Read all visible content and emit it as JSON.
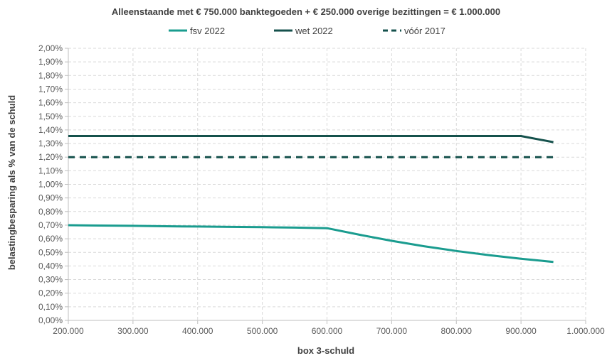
{
  "chart_data": {
    "type": "line",
    "title": "Alleenstaande met € 750.000 banktegoeden + € 250.000 overige bezittingen = € 1.000.000",
    "xlabel": "box 3-schuld",
    "ylabel": "belastingbesparing als % van de schuld",
    "xlim": [
      200000,
      1000000
    ],
    "ylim": [
      0,
      2.0
    ],
    "x_ticks": [
      200000,
      300000,
      400000,
      500000,
      600000,
      700000,
      800000,
      900000,
      1000000
    ],
    "x_tick_labels": [
      "200.000",
      "300.000",
      "400.000",
      "500.000",
      "600.000",
      "700.000",
      "800.000",
      "900.000",
      "1.000.000"
    ],
    "y_ticks": [
      0,
      0.1,
      0.2,
      0.3,
      0.4,
      0.5,
      0.6,
      0.7,
      0.8,
      0.9,
      1.0,
      1.1,
      1.2,
      1.3,
      1.4,
      1.5,
      1.6,
      1.7,
      1.8,
      1.9,
      2.0
    ],
    "y_tick_labels": [
      "0,00%",
      "0,10%",
      "0,20%",
      "0,30%",
      "0,40%",
      "0,50%",
      "0,60%",
      "0,70%",
      "0,80%",
      "0,90%",
      "1,00%",
      "1,10%",
      "1,20%",
      "1,30%",
      "1,40%",
      "1,50%",
      "1,60%",
      "1,70%",
      "1,80%",
      "1,90%",
      "2,00%"
    ],
    "grid": true,
    "legend_position": "top",
    "series": [
      {
        "name": "fsv 2022",
        "color": "#1a9c8f",
        "dash": "solid",
        "x": [
          200000,
          250000,
          300000,
          350000,
          400000,
          450000,
          500000,
          550000,
          600000,
          650000,
          700000,
          750000,
          800000,
          850000,
          900000,
          950000
        ],
        "y": [
          0.7,
          0.697,
          0.695,
          0.692,
          0.69,
          0.687,
          0.685,
          0.682,
          0.678,
          0.63,
          0.585,
          0.545,
          0.51,
          0.48,
          0.453,
          0.43
        ]
      },
      {
        "name": "wet 2022",
        "color": "#15514c",
        "dash": "solid",
        "x": [
          200000,
          900000,
          950000
        ],
        "y": [
          1.355,
          1.355,
          1.31
        ]
      },
      {
        "name": "vóór 2017",
        "color": "#15514c",
        "dash": "dashed",
        "x": [
          200000,
          950000
        ],
        "y": [
          1.2,
          1.2
        ]
      }
    ]
  }
}
